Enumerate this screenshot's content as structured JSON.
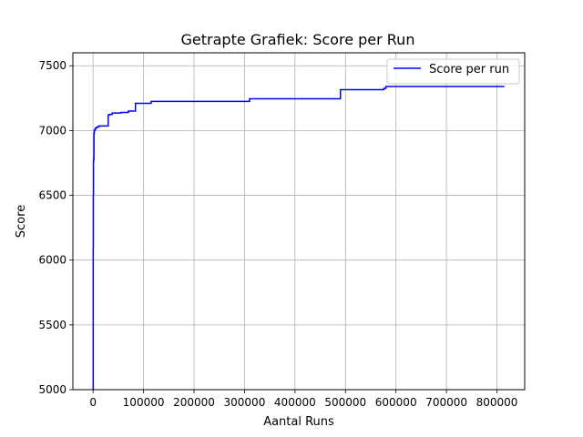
{
  "chart_data": {
    "type": "line",
    "title": "Getrapte Grafiek: Score per Run",
    "xlabel": "Aantal Runs",
    "ylabel": "Score",
    "xlim": [
      -40000,
      855000
    ],
    "ylim": [
      5000,
      7600
    ],
    "xticks": [
      {
        "value": 0,
        "label": "0"
      },
      {
        "value": 100000,
        "label": "100000"
      },
      {
        "value": 200000,
        "label": "200000"
      },
      {
        "value": 300000,
        "label": "300000"
      },
      {
        "value": 400000,
        "label": "400000"
      },
      {
        "value": 500000,
        "label": "500000"
      },
      {
        "value": 600000,
        "label": "600000"
      },
      {
        "value": 700000,
        "label": "700000"
      },
      {
        "value": 800000,
        "label": "800000"
      }
    ],
    "yticks": [
      {
        "value": 5000,
        "label": "5000"
      },
      {
        "value": 5500,
        "label": "5500"
      },
      {
        "value": 6000,
        "label": "6000"
      },
      {
        "value": 6500,
        "label": "6500"
      },
      {
        "value": 7000,
        "label": "7000"
      },
      {
        "value": 7500,
        "label": "7500"
      }
    ],
    "grid": true,
    "legend_position": "top-right",
    "series": [
      {
        "name": "Score per run",
        "color": "#0000ff",
        "x": [
          0,
          300,
          500,
          800,
          1200,
          1800,
          2500,
          3500,
          5000,
          7000,
          9000,
          12000,
          29000,
          30000,
          33000,
          38000,
          55000,
          70000,
          82000,
          84000,
          115000,
          310000,
          486000,
          490000,
          576000,
          580000,
          815000
        ],
        "y": [
          5000,
          6100,
          6500,
          6760,
          6780,
          6980,
          7000,
          7010,
          7020,
          7025,
          7030,
          7035,
          7035,
          7120,
          7125,
          7135,
          7140,
          7150,
          7150,
          7210,
          7225,
          7245,
          7245,
          7315,
          7325,
          7340,
          7340
        ]
      }
    ]
  }
}
